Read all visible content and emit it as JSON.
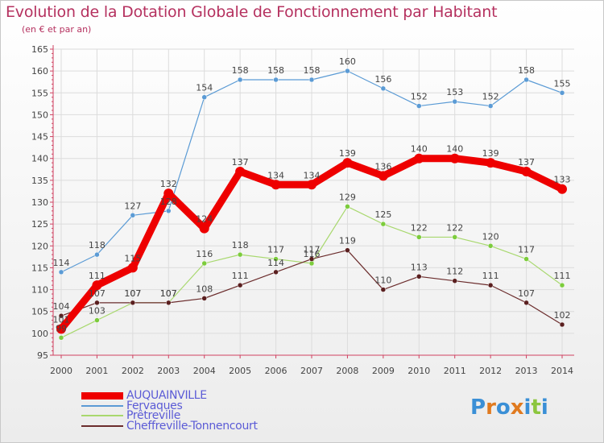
{
  "chart_data": {
    "type": "line",
    "title": "Evolution de la Dotation Globale de Fonctionnement par Habitant",
    "subtitle": "(en € et par an)",
    "xlabel": "",
    "ylabel": "",
    "x": [
      "2000",
      "2001",
      "2002",
      "2003",
      "2004",
      "2005",
      "2006",
      "2007",
      "2008",
      "2009",
      "2010",
      "2011",
      "2012",
      "2013",
      "2014"
    ],
    "ylim": [
      95,
      165
    ],
    "yticks": [
      95,
      100,
      105,
      110,
      115,
      120,
      125,
      130,
      135,
      140,
      145,
      150,
      155,
      160,
      165
    ],
    "grid": true,
    "series": [
      {
        "name": "Fervaques",
        "color": "#5b9bd5",
        "width": 1.2,
        "marker": "#5b9bd5",
        "label_color": "#444444",
        "values": [
          114,
          118,
          127,
          128,
          154,
          158,
          158,
          158,
          160,
          156,
          152,
          153,
          152,
          158,
          155
        ]
      },
      {
        "name": "Prêtreville",
        "color": "#a8d86e",
        "width": 1.2,
        "marker": "#7ccc3c",
        "label_color": "#444444",
        "values": [
          99,
          103,
          107,
          107,
          116,
          118,
          117,
          116,
          129,
          125,
          122,
          122,
          120,
          117,
          111
        ]
      },
      {
        "name": "Cheffreville-Tonnencourt",
        "color": "#6b2c2c",
        "width": 1.2,
        "marker": "#5a1f1f",
        "label_color": "#444444",
        "values": [
          104,
          107,
          107,
          107,
          108,
          111,
          114,
          117,
          119,
          110,
          113,
          112,
          111,
          107,
          102
        ]
      },
      {
        "name": "AUQUAINVILLE",
        "color": "#ee0000",
        "width": 9,
        "marker": "#ee0000",
        "label_color": "#444444",
        "values": [
          101,
          111,
          115,
          132,
          124,
          137,
          134,
          134,
          139,
          136,
          140,
          140,
          139,
          137,
          133
        ]
      }
    ],
    "legend": [
      {
        "name": "AUQUAINVILLE",
        "color": "#ee0000",
        "thickness": 9
      },
      {
        "name": "Fervaques",
        "color": "#5b9bd5",
        "thickness": 2
      },
      {
        "name": "Prêtreville",
        "color": "#a8d86e",
        "thickness": 2
      },
      {
        "name": "Cheffreville-Tonnencourt",
        "color": "#6b2c2c",
        "thickness": 2
      }
    ],
    "legend_position": "bottom-left"
  },
  "brand": {
    "letters": [
      "P",
      "r",
      "o",
      "x",
      "i",
      "t",
      "i"
    ],
    "colors": [
      "#3a8fd6",
      "#e07a1f",
      "#3a8fd6",
      "#e07a1f",
      "#3a8fd6",
      "#8cc63e",
      "#3a8fd6"
    ]
  }
}
